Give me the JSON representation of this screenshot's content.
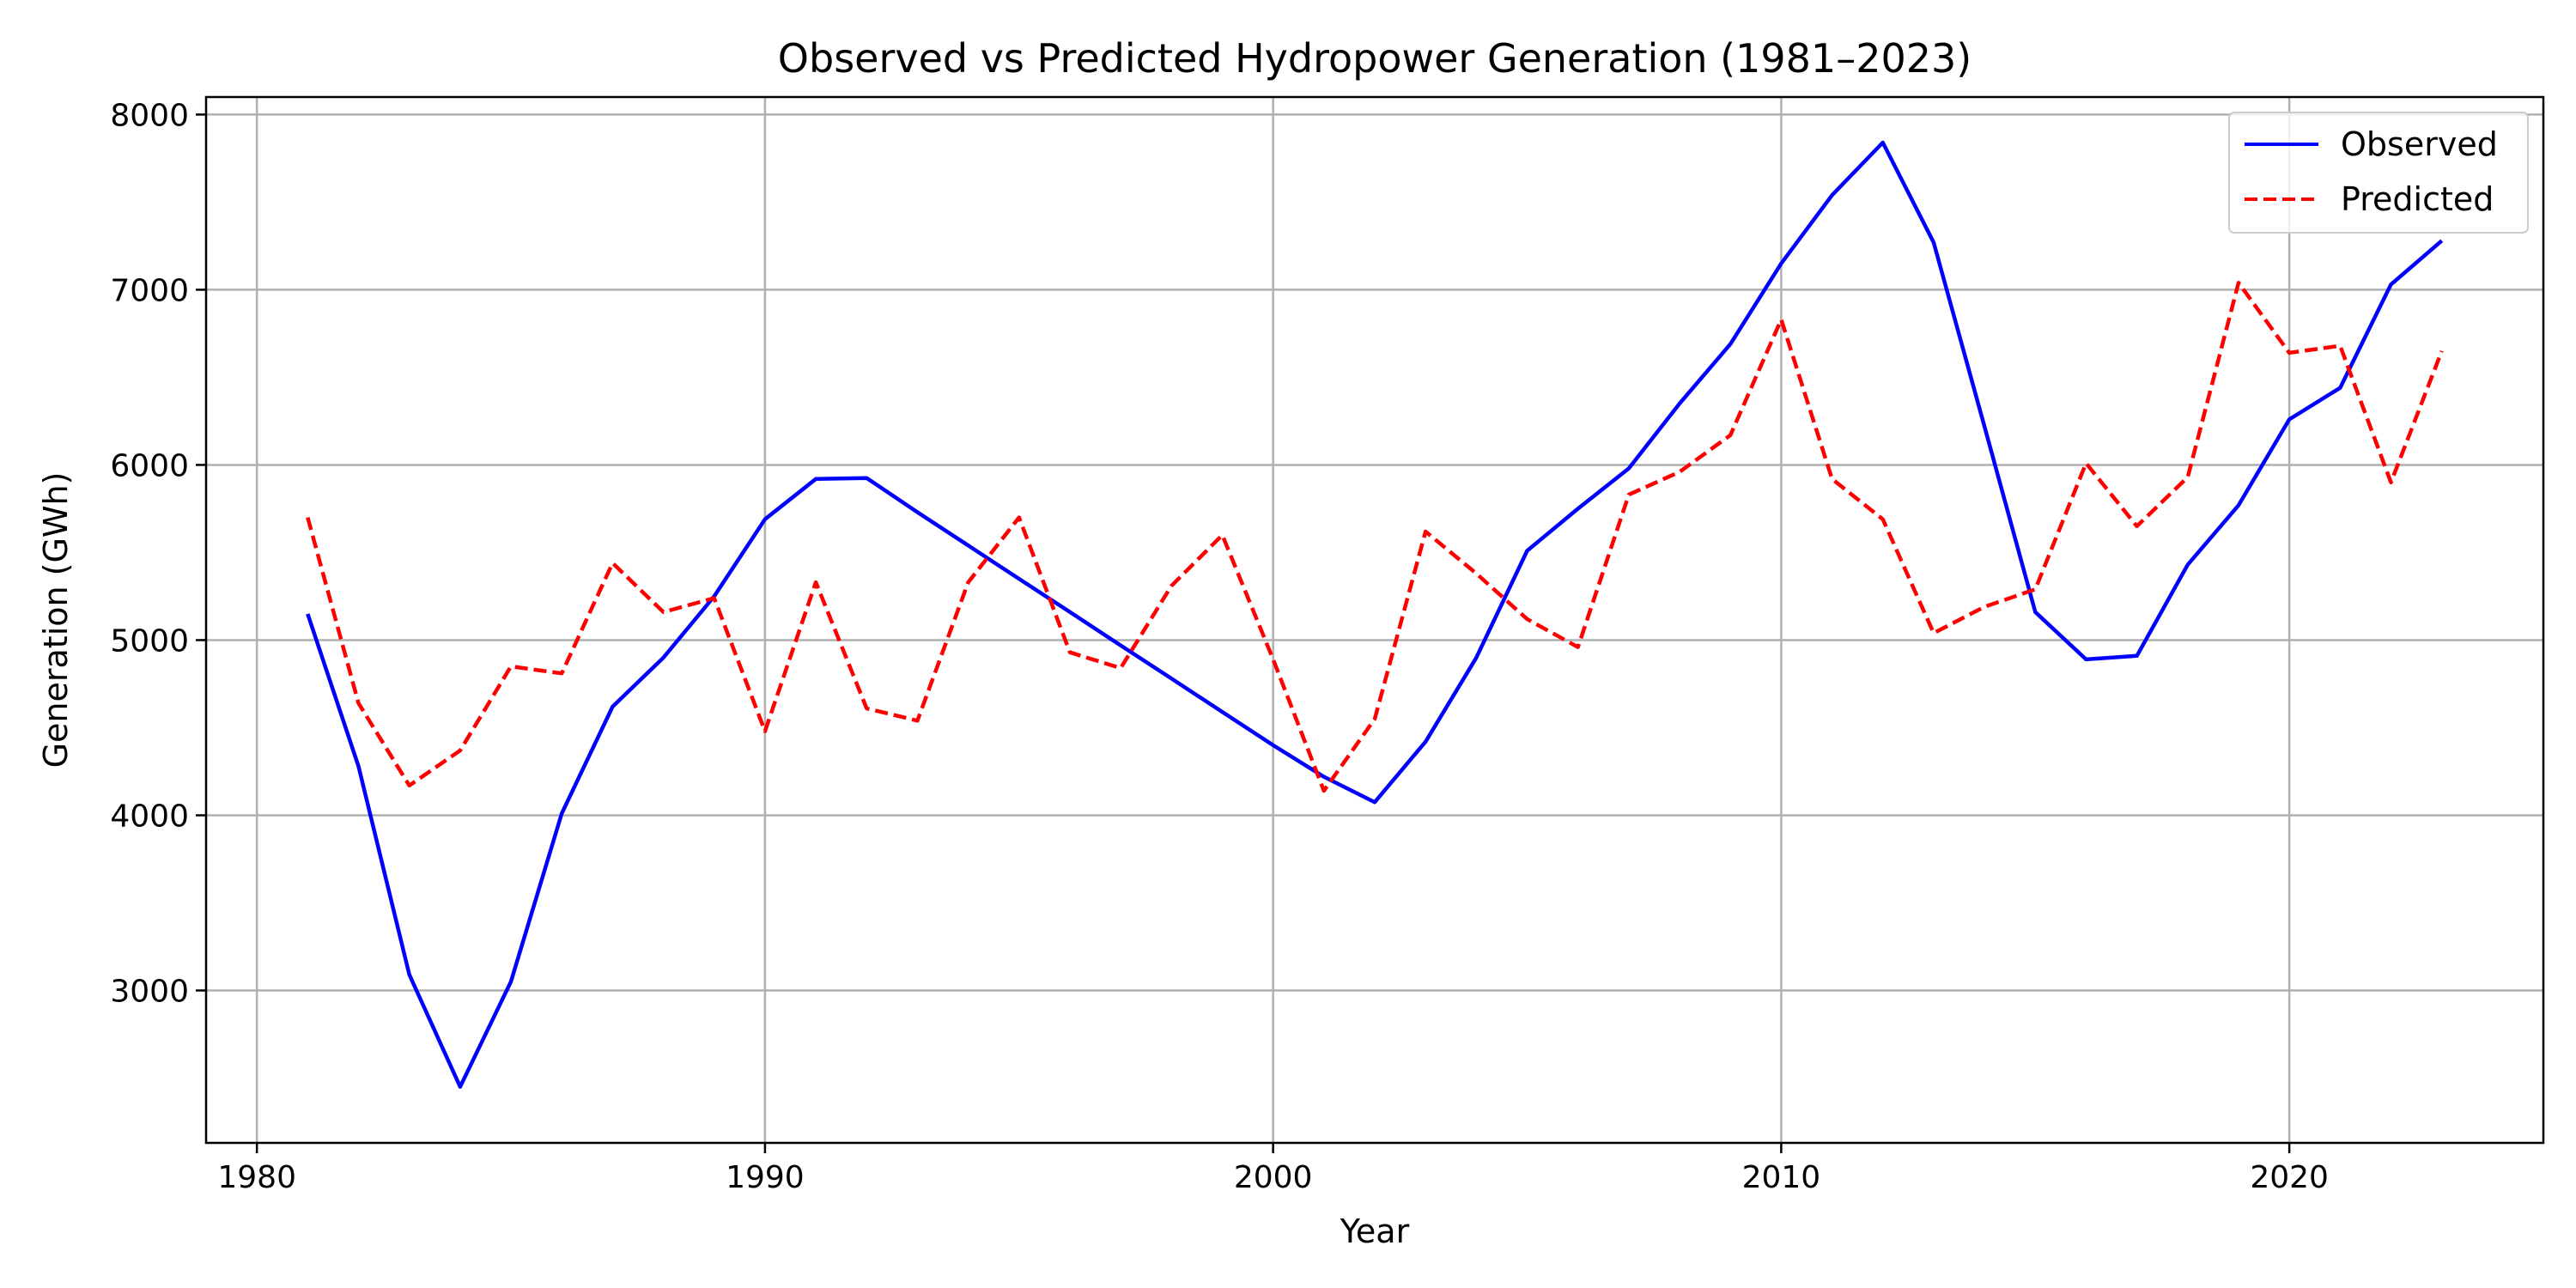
{
  "chart_data": {
    "type": "line",
    "title": "Observed vs Predicted Hydropower Generation (1981–2023)",
    "xlabel": "Year",
    "ylabel": "Generation (GWh)",
    "xlim": [
      1979,
      2025
    ],
    "ylim": [
      2130,
      8100
    ],
    "xticks": [
      1980,
      1990,
      2000,
      2010,
      2020
    ],
    "yticks": [
      3000,
      4000,
      5000,
      6000,
      7000,
      8000
    ],
    "grid": true,
    "legend_position": "top-right",
    "x": [
      1981,
      1982,
      1983,
      1984,
      1985,
      1986,
      1987,
      1988,
      1989,
      1990,
      1991,
      1992,
      1993,
      1994,
      1995,
      1996,
      1997,
      1998,
      1999,
      2000,
      2001,
      2002,
      2003,
      2004,
      2005,
      2006,
      2007,
      2008,
      2009,
      2010,
      2011,
      2012,
      2013,
      2014,
      2015,
      2016,
      2017,
      2018,
      2019,
      2020,
      2021,
      2022,
      2023
    ],
    "series": [
      {
        "name": "Observed",
        "color": "#0000ff",
        "style": "solid",
        "values": [
          5150,
          4280,
          3090,
          2450,
          3050,
          4010,
          4620,
          4900,
          5250,
          5690,
          5920,
          5925,
          5730,
          5540,
          5350,
          5160,
          4970,
          4780,
          4590,
          4400,
          4220,
          4075,
          4420,
          4900,
          5510,
          5750,
          5980,
          6350,
          6690,
          7150,
          7540,
          7840,
          7270,
          6220,
          5160,
          4890,
          4910,
          5430,
          5770,
          6260,
          6440,
          7030,
          7280
        ]
      },
      {
        "name": "Predicted",
        "color": "#ff0000",
        "style": "dashed",
        "values": [
          5700,
          4640,
          4170,
          4370,
          4850,
          4810,
          5440,
          5160,
          5240,
          4480,
          5330,
          4610,
          4540,
          5330,
          5700,
          4930,
          4840,
          5310,
          5600,
          4890,
          4140,
          4550,
          5620,
          5380,
          5120,
          4960,
          5830,
          5960,
          6170,
          6830,
          5920,
          5690,
          5040,
          5190,
          5290,
          6010,
          5650,
          5930,
          7040,
          6640,
          6680,
          5900,
          6650
        ]
      }
    ]
  }
}
